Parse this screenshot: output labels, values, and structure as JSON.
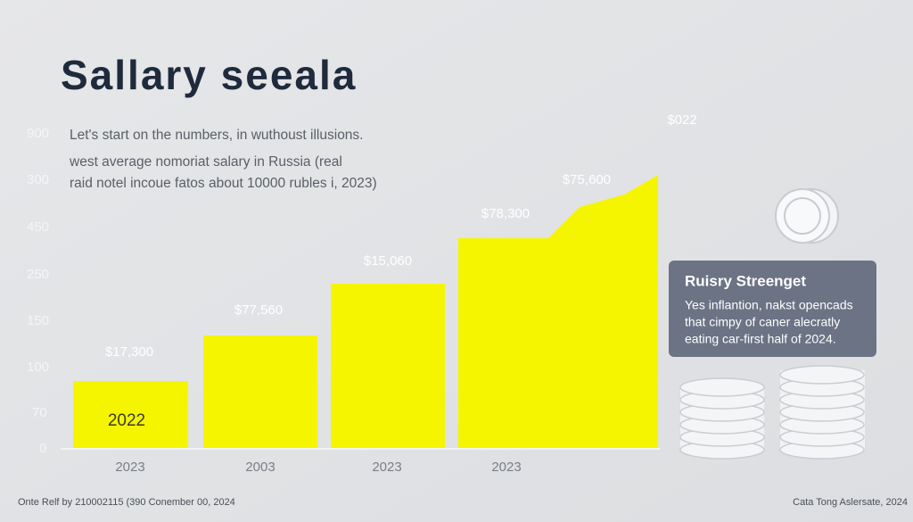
{
  "header": {
    "title": "Sallary seeala"
  },
  "intro": [
    "Let's start on the numbers, in wuthoust illusions.",
    "west average nomoriat salary in Russia (real",
    "raid notel incoue fatos about 10000 rubles i, 2023)"
  ],
  "axis_labels": [
    "900",
    "300",
    "450",
    "250",
    "150",
    "100",
    "70",
    "0"
  ],
  "bars": [
    {
      "value_label": "$17,300",
      "x_label": "2023",
      "inner_label": "2022"
    },
    {
      "value_label": "$77,560",
      "x_label": "2003"
    },
    {
      "value_label": "$15,060",
      "x_label": "2023"
    },
    {
      "value_label": "$78,300",
      "x_label": "2023"
    }
  ],
  "peak_label": "$75,600",
  "top_label": "$022",
  "callout": {
    "title": "Ruisry Streenget",
    "lines": [
      "Yes inflantion, nakst opencads",
      "that cimpy of caner alecratly",
      "eating car-first half of 2024."
    ]
  },
  "footer": {
    "left": "Onte Relf by 210002115 (390 Conember 00, 2024",
    "right": "Cata Tong Aslersate, 2024"
  }
}
